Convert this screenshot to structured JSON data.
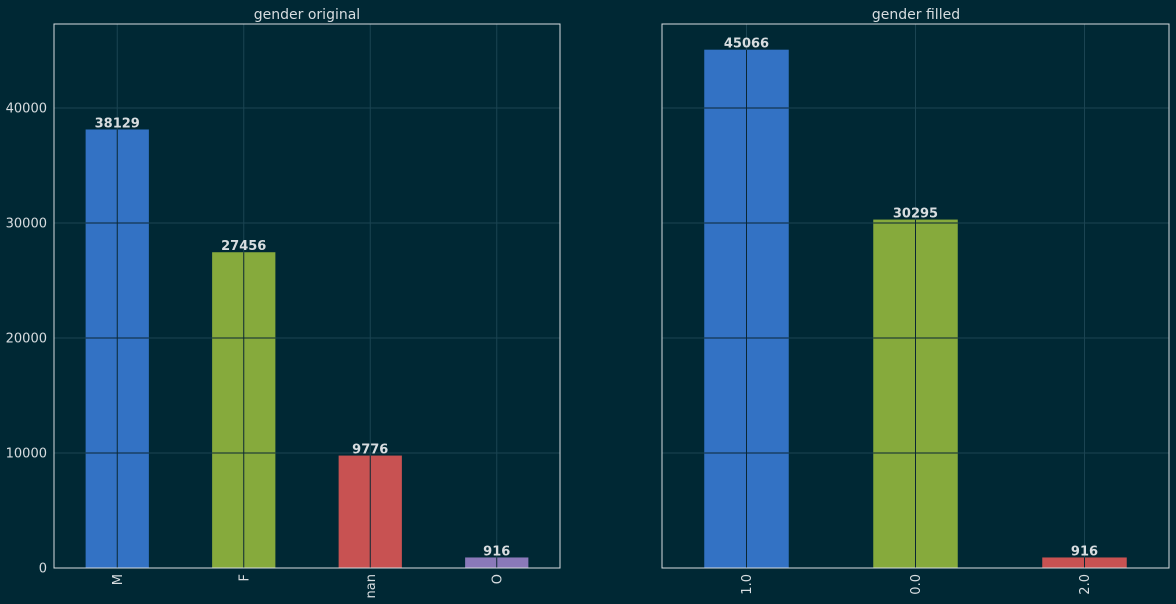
{
  "theme": {
    "background": "#002834",
    "axes_face": "#002834",
    "spine": "#d8dde0",
    "grid": "#1b4452",
    "text": "#d8dde0",
    "bar_line": "#0b2733",
    "palette": [
      "#3372c4",
      "#86aa3c",
      "#c85252",
      "#8a79b9"
    ]
  },
  "chart_data": [
    {
      "type": "bar",
      "title": "gender original",
      "categories": [
        "M",
        "F",
        "nan",
        "O"
      ],
      "values": [
        38129,
        27456,
        9776,
        916
      ],
      "colors": [
        "#3372c4",
        "#86aa3c",
        "#c85252",
        "#8a79b9"
      ],
      "data_labels": [
        "38129",
        "27456",
        "9776",
        "916"
      ],
      "xlabel": "",
      "ylabel": "",
      "ylim": [
        0,
        47300
      ],
      "yticks": [
        0,
        10000,
        20000,
        30000,
        40000
      ],
      "ytick_labels": [
        "0",
        "10000",
        "20000",
        "30000",
        "40000"
      ],
      "grid": true,
      "xtick_rotation": "vertical"
    },
    {
      "type": "bar",
      "title": "gender filled",
      "categories": [
        "1.0",
        "0.0",
        "2.0"
      ],
      "values": [
        45066,
        30295,
        916
      ],
      "colors": [
        "#3372c4",
        "#86aa3c",
        "#c85252"
      ],
      "data_labels": [
        "45066",
        "30295",
        "916"
      ],
      "xlabel": "",
      "ylabel": "",
      "ylim": [
        0,
        47300
      ],
      "yticks": [
        0,
        10000,
        20000,
        30000,
        40000
      ],
      "ytick_labels": [],
      "grid": true,
      "xtick_rotation": "vertical"
    }
  ]
}
